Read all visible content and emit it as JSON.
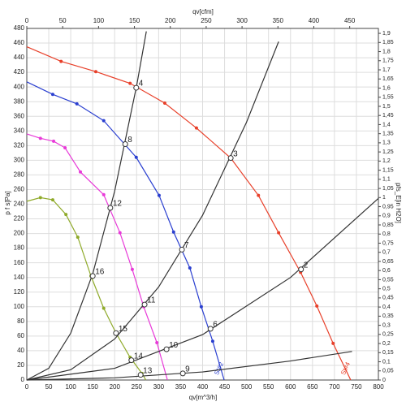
{
  "chart_data": {
    "type": "line",
    "xlabel": "qv[m^3/h]",
    "x2label": "qv[cfm]",
    "ylabel": "p f s[Pa]",
    "y2label": "pfs_E[in H2O]",
    "xlim": [
      0,
      800
    ],
    "xticks": [
      0,
      50,
      100,
      150,
      200,
      250,
      300,
      350,
      400,
      450,
      500,
      550,
      600,
      650,
      700,
      750,
      800
    ],
    "x2lim": [
      0,
      490
    ],
    "x2ticks": [
      0,
      50,
      100,
      150,
      200,
      250,
      300,
      350,
      400,
      450
    ],
    "ylim": [
      0,
      480
    ],
    "yticks": [
      0,
      20,
      40,
      60,
      80,
      100,
      120,
      140,
      160,
      180,
      200,
      220,
      240,
      260,
      280,
      300,
      320,
      340,
      360,
      380,
      400,
      420,
      440,
      460,
      480
    ],
    "y2lim": [
      0,
      1.927
    ],
    "y2ticks": [
      0,
      {
        "value": 0.05,
        "label": "0,05"
      },
      {
        "value": 0.1,
        "label": "0,1"
      },
      {
        "value": 0.15,
        "label": "0,15"
      },
      {
        "value": 0.2,
        "label": "0,2"
      },
      {
        "value": 0.25,
        "label": "0,25"
      },
      {
        "value": 0.3,
        "label": "0,3"
      },
      {
        "value": 0.35,
        "label": "0,35"
      },
      {
        "value": 0.4,
        "label": "0,4"
      },
      {
        "value": 0.45,
        "label": "0,45"
      },
      {
        "value": 0.5,
        "label": "0,5"
      },
      {
        "value": 0.55,
        "label": "0,55"
      },
      {
        "value": 0.6,
        "label": "0,6"
      },
      {
        "value": 0.65,
        "label": "0,65"
      },
      {
        "value": 0.7,
        "label": "0,7"
      },
      {
        "value": 0.75,
        "label": "0,75"
      },
      {
        "value": 0.8,
        "label": "0,8"
      },
      {
        "value": 0.85,
        "label": "0,85"
      },
      {
        "value": 0.9,
        "label": "0,9"
      },
      {
        "value": 0.95,
        "label": "0,95"
      },
      1,
      {
        "value": 1.05,
        "label": "1,05"
      },
      {
        "value": 1.1,
        "label": "1,1"
      },
      {
        "value": 1.15,
        "label": "1,15"
      },
      {
        "value": 1.2,
        "label": "1,2"
      },
      {
        "value": 1.25,
        "label": "1,25"
      },
      {
        "value": 1.3,
        "label": "1,3"
      },
      {
        "value": 1.35,
        "label": "1,35"
      },
      {
        "value": 1.4,
        "label": "1,4"
      },
      {
        "value": 1.45,
        "label": "1,45"
      },
      {
        "value": 1.5,
        "label": "1,5"
      },
      {
        "value": 1.55,
        "label": "1,55"
      },
      {
        "value": 1.6,
        "label": "1,6"
      },
      {
        "value": 1.65,
        "label": "1,65"
      },
      {
        "value": 1.7,
        "label": "1,7"
      },
      {
        "value": 1.75,
        "label": "1,75"
      },
      {
        "value": 1.8,
        "label": "1,8"
      },
      {
        "value": 1.85,
        "label": "1,85"
      },
      {
        "value": 1.9,
        "label": "1,9"
      }
    ],
    "grid": true,
    "series": [
      {
        "name": "St#4",
        "color": "#e8402a",
        "markers": true,
        "x": [
          0,
          78,
          157,
          235,
          314,
          386,
          464,
          527,
          573,
          623,
          660,
          697,
          737
        ],
        "values": [
          455,
          435,
          421,
          405,
          378,
          344,
          303,
          252,
          201,
          147,
          101,
          50,
          0
        ]
      },
      {
        "name": "St#2",
        "color": "#2a3fd0",
        "markers": true,
        "x": [
          0,
          59,
          114,
          175,
          249,
          301,
          334,
          371,
          397,
          423,
          449
        ],
        "values": [
          407,
          390,
          377,
          354,
          304,
          252,
          202,
          153,
          100,
          53,
          0
        ]
      },
      {
        "color": "#e83ad8",
        "markers": true,
        "x": [
          0,
          31,
          61,
          87,
          122,
          175,
          212,
          240,
          266,
          296,
          320
        ],
        "values": [
          336,
          330,
          326,
          317,
          284,
          253,
          201,
          151,
          100,
          51,
          0
        ]
      },
      {
        "color": "#8faa2a",
        "markers": true,
        "x": [
          0,
          31,
          59,
          89,
          116,
          146,
          175,
          203,
          235,
          262,
          271
        ],
        "values": [
          244,
          249,
          246,
          226,
          195,
          142,
          98,
          64,
          31,
          9,
          0
        ]
      },
      {
        "color": "#333333",
        "markers": false,
        "x": [
          0,
          50,
          100,
          150,
          200,
          250,
          272
        ],
        "values": [
          0,
          16,
          64,
          145,
          258,
          402,
          476
        ]
      },
      {
        "color": "#333333",
        "markers": false,
        "x": [
          0,
          100,
          200,
          300,
          400,
          500,
          573
        ],
        "values": [
          0,
          14,
          56,
          127,
          225,
          352,
          462
        ]
      },
      {
        "color": "#333333",
        "markers": false,
        "x": [
          0,
          200,
          400,
          600,
          800
        ],
        "values": [
          0,
          16,
          62,
          140,
          248
        ]
      },
      {
        "color": "#333333",
        "markers": false,
        "x": [
          0,
          200,
          400,
          600,
          740
        ],
        "values": [
          0,
          3,
          11,
          26,
          39
        ]
      }
    ],
    "annotations": [
      {
        "label": "4",
        "x": 249,
        "y": 399
      },
      {
        "label": "8",
        "x": 224,
        "y": 322
      },
      {
        "label": "12",
        "x": 190,
        "y": 235
      },
      {
        "label": "16",
        "x": 150,
        "y": 142
      },
      {
        "label": "3",
        "x": 464,
        "y": 303
      },
      {
        "label": "7",
        "x": 353,
        "y": 178
      },
      {
        "label": "11",
        "x": 268,
        "y": 103
      },
      {
        "label": "15",
        "x": 203,
        "y": 64
      },
      {
        "label": "2",
        "x": 624,
        "y": 151
      },
      {
        "label": "6",
        "x": 418,
        "y": 70
      },
      {
        "label": "10",
        "x": 318,
        "y": 42
      },
      {
        "label": "14",
        "x": 238,
        "y": 27
      },
      {
        "label": "9",
        "x": 355,
        "y": 9
      },
      {
        "label": "13",
        "x": 259,
        "y": 7
      }
    ]
  }
}
